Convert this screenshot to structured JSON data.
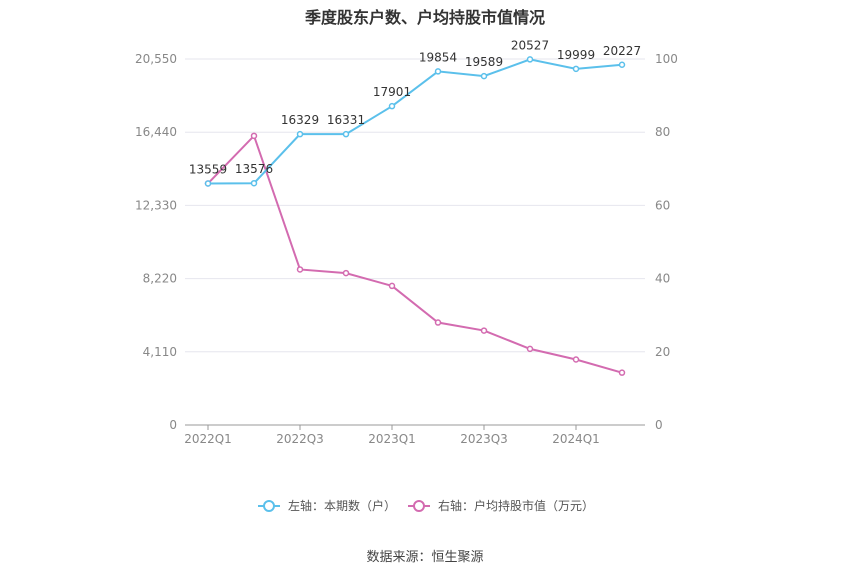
{
  "title": "季度股东户数、户均持股市值情况",
  "source": "数据来源：恒生聚源",
  "chart_data": {
    "type": "line",
    "title": "季度股东户数、户均持股市值情况",
    "x": [
      "2022Q1",
      "2022Q2",
      "2022Q3",
      "2022Q4",
      "2023Q1",
      "2023Q2",
      "2023Q3",
      "2023Q4",
      "2024Q1",
      "2024Q2"
    ],
    "x_tick_labels": [
      "2022Q1",
      "",
      "2022Q3",
      "",
      "2023Q1",
      "",
      "2023Q3",
      "",
      "2024Q1",
      ""
    ],
    "y_left": {
      "ticks": [
        "0",
        "4,110",
        "8,220",
        "12,330",
        "16,440",
        "20,550"
      ],
      "min": 0,
      "max": 20550
    },
    "y_right": {
      "ticks": [
        "0",
        "20",
        "40",
        "60",
        "80",
        "100"
      ],
      "min": 0,
      "max": 100
    },
    "grid": true,
    "legend_position": "bottom",
    "series": [
      {
        "name": "左轴：本期数（户）",
        "axis": "left",
        "color": "#5bc0eb",
        "values": [
          13559,
          13576,
          16329,
          16331,
          17901,
          19854,
          19589,
          20527,
          19999,
          20227
        ],
        "labels": [
          "13559",
          "13576",
          "16329",
          "16331",
          "17901",
          "19854",
          "19589",
          "20527",
          "19999",
          "20227"
        ]
      },
      {
        "name": "右轴：户均持股市值（万元）",
        "axis": "right",
        "color": "#d36bb0",
        "values": [
          66.0,
          79.0,
          42.5,
          41.5,
          38.0,
          28.0,
          25.8,
          20.8,
          17.9,
          14.3
        ]
      }
    ]
  }
}
